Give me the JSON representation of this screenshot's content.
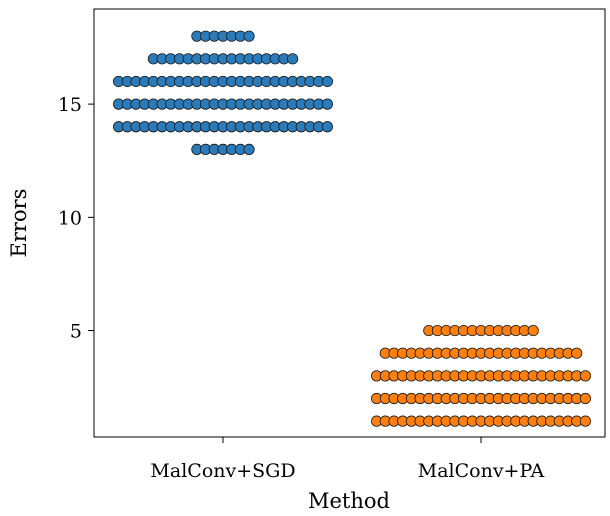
{
  "chart_data": {
    "type": "swarm",
    "xlabel": "Method",
    "ylabel": "Errors",
    "categories": [
      "MalConv+SGD",
      "MalConv+PA"
    ],
    "ylim": [
      0.3,
      19.2
    ],
    "yticks": [
      5,
      10,
      15
    ],
    "grid": false,
    "series": [
      {
        "category": "MalConv+SGD",
        "color": "#2b7bba",
        "counts": [
          {
            "y": 13,
            "n": 7
          },
          {
            "y": 14,
            "n": 25
          },
          {
            "y": 15,
            "n": 25
          },
          {
            "y": 16,
            "n": 25
          },
          {
            "y": 17,
            "n": 17
          },
          {
            "y": 18,
            "n": 7
          }
        ]
      },
      {
        "category": "MalConv+PA",
        "color": "#ff8011",
        "counts": [
          {
            "y": 1,
            "n": 25
          },
          {
            "y": 2,
            "n": 25
          },
          {
            "y": 3,
            "n": 25
          },
          {
            "y": 4,
            "n": 23
          },
          {
            "y": 5,
            "n": 13
          }
        ]
      }
    ]
  }
}
